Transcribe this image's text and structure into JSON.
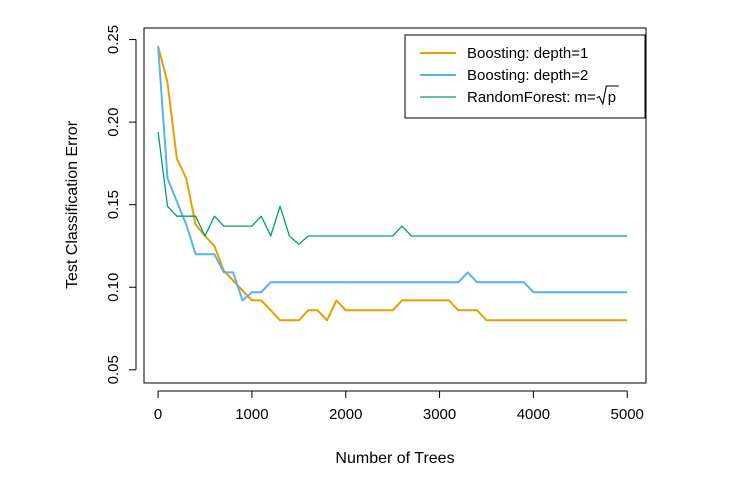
{
  "chart_data": {
    "type": "line",
    "title": "",
    "xlabel": "Number of Trees",
    "ylabel": "Test Classification Error",
    "xlim": [
      -150,
      5200
    ],
    "ylim": [
      0.042,
      0.257
    ],
    "xticks": [
      0,
      1000,
      2000,
      3000,
      4000,
      5000
    ],
    "xtick_labels": [
      "0",
      "1000",
      "2000",
      "3000",
      "4000",
      "5000"
    ],
    "yticks": [
      0.05,
      0.1,
      0.15,
      0.2,
      0.25
    ],
    "ytick_labels": [
      "0.05",
      "0.10",
      "0.15",
      "0.20",
      "0.25"
    ],
    "grid": false,
    "legend_position": "top-right",
    "series": [
      {
        "name": "Boosting: depth=1",
        "color": "#E69F00",
        "x": [
          0,
          100,
          200,
          300,
          400,
          500,
          600,
          700,
          800,
          900,
          1000,
          1100,
          1200,
          1300,
          1400,
          1500,
          1600,
          1700,
          1800,
          1900,
          2000,
          2500,
          2600,
          3100,
          3200,
          3400,
          3500,
          5000
        ],
        "y": [
          0.246,
          0.224,
          0.178,
          0.166,
          0.138,
          0.131,
          0.125,
          0.11,
          0.104,
          0.098,
          0.092,
          0.092,
          0.086,
          0.08,
          0.08,
          0.08,
          0.086,
          0.086,
          0.08,
          0.092,
          0.086,
          0.086,
          0.092,
          0.092,
          0.086,
          0.086,
          0.08,
          0.08
        ]
      },
      {
        "name": "Boosting: depth=2",
        "color": "#56B4E9",
        "x": [
          0,
          100,
          200,
          300,
          400,
          500,
          600,
          700,
          800,
          900,
          1000,
          1100,
          1200,
          3200,
          3300,
          3400,
          3900,
          4000,
          5000
        ],
        "y": [
          0.246,
          0.166,
          0.152,
          0.138,
          0.12,
          0.12,
          0.12,
          0.109,
          0.109,
          0.092,
          0.097,
          0.097,
          0.103,
          0.103,
          0.109,
          0.103,
          0.103,
          0.097,
          0.097
        ]
      },
      {
        "name": "RandomForest: m=√p",
        "label_prefix": "RandomForest: m=",
        "label_sqrt_of": "p",
        "color": "#009E73",
        "x": [
          0,
          100,
          200,
          300,
          400,
          500,
          600,
          700,
          800,
          900,
          1000,
          1100,
          1200,
          1300,
          1400,
          1500,
          1600,
          1700,
          2500,
          2600,
          2700,
          5000
        ],
        "y": [
          0.194,
          0.149,
          0.143,
          0.143,
          0.143,
          0.131,
          0.143,
          0.137,
          0.137,
          0.137,
          0.137,
          0.143,
          0.131,
          0.149,
          0.131,
          0.126,
          0.131,
          0.131,
          0.131,
          0.137,
          0.131,
          0.131
        ]
      }
    ]
  }
}
